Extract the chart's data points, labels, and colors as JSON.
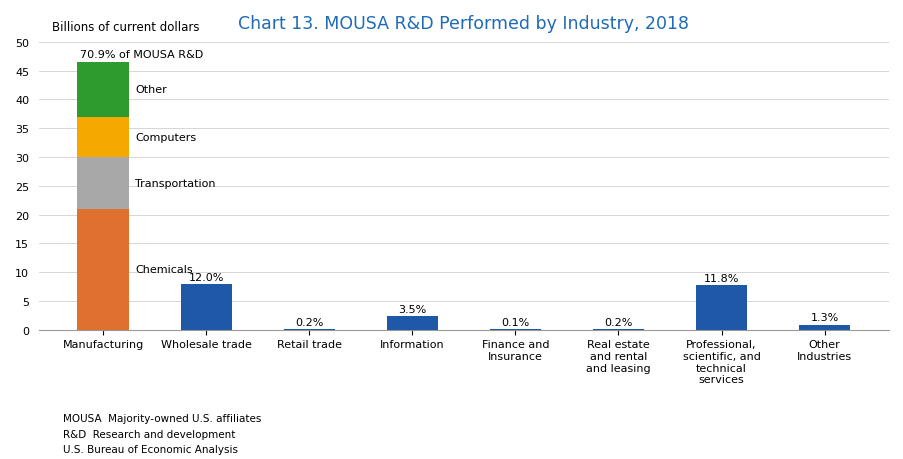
{
  "title": "Chart 13. MOUSA R&D Performed by Industry, 2018",
  "title_color": "#1F6BB5",
  "ylabel": "Billions of current dollars",
  "ylim": [
    0,
    50
  ],
  "yticks": [
    0,
    5,
    10,
    15,
    20,
    25,
    30,
    35,
    40,
    45,
    50
  ],
  "categories": [
    "Manufacturing",
    "Wholesale trade",
    "Retail trade",
    "Information",
    "Finance and\nInsurance",
    "Real estate\nand rental\nand leasing",
    "Professional,\nscientific, and\ntechnical\nservices",
    "Other\nIndustries"
  ],
  "single_bar_values": [
    null,
    7.87,
    0.13,
    2.3,
    0.07,
    0.13,
    7.74,
    0.85
  ],
  "single_bar_color": "#2058A8",
  "single_bar_pct_labels": [
    "",
    "12.0%",
    "0.2%",
    "3.5%",
    "0.1%",
    "0.2%",
    "11.8%",
    "1.3%"
  ],
  "mfg_annotation": "70.9% of MOUSA R&D",
  "stacked_segments": [
    {
      "label": "Chemicals",
      "value": 21.0,
      "color": "#E07030"
    },
    {
      "label": "Transportation",
      "value": 9.0,
      "color": "#A8A8A8"
    },
    {
      "label": "Computers",
      "value": 7.0,
      "color": "#F5A800"
    },
    {
      "label": "Other",
      "value": 9.5,
      "color": "#2E9B2E"
    }
  ],
  "footnote_lines": [
    "MOUSA  Majority-owned U.S. affiliates",
    "R&D  Research and development",
    "U.S. Bureau of Economic Analysis"
  ],
  "background_color": "#FFFFFF"
}
